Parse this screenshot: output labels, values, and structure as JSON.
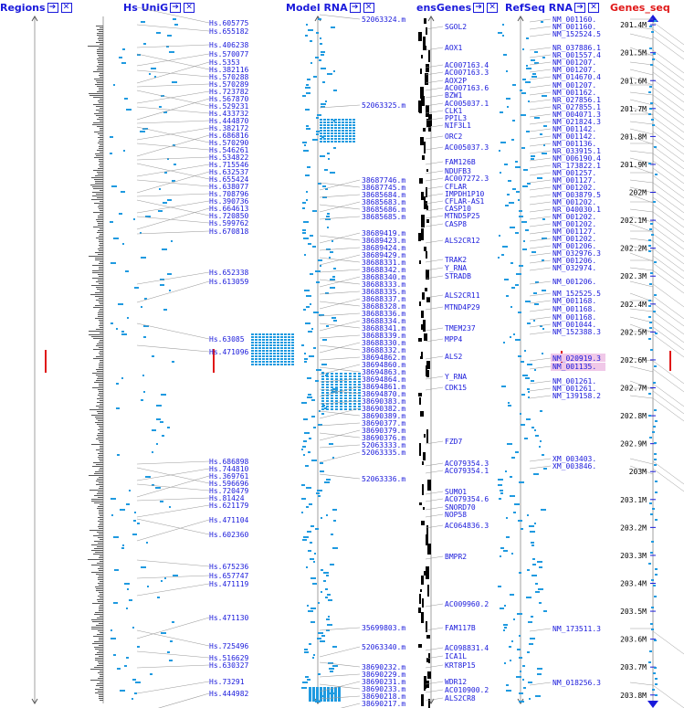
{
  "columns": [
    {
      "id": "regions",
      "title": "Regions",
      "active": false
    },
    {
      "id": "unigene",
      "title": "Hs UniG",
      "active": false
    },
    {
      "id": "modelrna",
      "title": "Model RNA",
      "active": false
    },
    {
      "id": "ensgenes",
      "title": "ensGenes",
      "active": false
    },
    {
      "id": "refseq",
      "title": "RefSeq RNA",
      "active": false
    },
    {
      "id": "genesseq",
      "title": "Genes_seq",
      "active": true
    }
  ],
  "button_glyphs": {
    "go": "➔",
    "close": "✕"
  },
  "colors": {
    "link": "#1a1adb",
    "active": "#e01818",
    "feature": "#1f9ae0",
    "gene": "#000000",
    "connector": "#9a9a9a",
    "highlight": "#f0c8e8"
  },
  "unigene_labels": [
    "Hs.605775",
    "Hs.655182",
    "Hs.406238",
    "Hs.570077",
    "Hs.5353",
    "Hs.382116",
    "Hs.570288",
    "Hs.570289",
    "Hs.723782",
    "Hs.567870",
    "Hs.529231",
    "Hs.433732",
    "Hs.444870",
    "Hs.382172",
    "Hs.686816",
    "Hs.570290",
    "Hs.546261",
    "Hs.534822",
    "Hs.715546",
    "Hs.632537",
    "Hs.655424",
    "Hs.638077",
    "Hs.708796",
    "Hs.390736",
    "Hs.664613",
    "Hs.720850",
    "Hs.599762",
    "Hs.670818",
    "Hs.652338",
    "Hs.613059",
    "Hs.63085",
    "Hs.471096",
    "Hs.686898",
    "Hs.744810",
    "Hs.369761",
    "Hs.596696",
    "Hs.720479",
    "Hs.81424",
    "Hs.621179",
    "Hs.471104",
    "Hs.602360",
    "Hs.675236",
    "Hs.657747",
    "Hs.471119",
    "Hs.471130",
    "Hs.725496",
    "Hs.516629",
    "Hs.630327",
    "Hs.73291",
    "Hs.444982"
  ],
  "modelrna_labels": [
    "52063324.m",
    "52063325.m",
    "38687746.m",
    "38687745.m",
    "38685684.m",
    "38685683.m",
    "38685686.m",
    "38685685.m",
    "38689419.m",
    "38689423.m",
    "38689424.m",
    "38689429.m",
    "38688331.m",
    "38688342.m",
    "38688340.m",
    "38688333.m",
    "38688335.m",
    "38688337.m",
    "38688328.m",
    "38688336.m",
    "38688334.m",
    "38688341.m",
    "38688339.m",
    "38688330.m",
    "38688332.m",
    "38694862.m",
    "38694860.m",
    "38694863.m",
    "38694864.m",
    "38694861.m",
    "38694870.m",
    "38690383.m",
    "38690382.m",
    "38690389.m",
    "38690377.m",
    "38690379.m",
    "38690376.m",
    "52063333.m",
    "52063335.m",
    "52063336.m",
    "35699803.m",
    "52063340.m",
    "38690232.m",
    "38690229.m",
    "38690231.m",
    "38690233.m",
    "38690218.m",
    "38690217.m"
  ],
  "ens_labels": [
    "SGOL2",
    "AOX1",
    "AC007163.4",
    "AC007163.3",
    "AOX2P",
    "AC007163.6",
    "BZW1",
    "AC005037.1",
    "CLK1",
    "PPIL3",
    "NIF3L1",
    "ORC2",
    "AC005037.3",
    "FAM126B",
    "NDUFB3",
    "AC007272.3",
    "CFLAR",
    "IMPDH1P10",
    "CFLAR-AS1",
    "CASP10",
    "MTND5P25",
    "CASP8",
    "ALS2CR12",
    "TRAK2",
    "Y_RNA",
    "STRADB",
    "ALS2CR11",
    "MTND4P29",
    "TMEM237",
    "MPP4",
    "ALS2",
    "Y_RNA",
    "CDK15",
    "FZD7",
    "AC079354.3",
    "AC079354.1",
    "SUMO1",
    "AC079354.6",
    "SNORD70",
    "NOP58",
    "AC064836.3",
    "BMPR2",
    "AC009960.2",
    "FAM117B",
    "AC098831.4",
    "ICA1L",
    "KRT8P15",
    "WDR12",
    "AC010900.2",
    "ALS2CR8"
  ],
  "refseq_labels": [
    "NM_001160.",
    "NM_001160.",
    "NM_152524.5",
    "NR_037886.1",
    "NR_001557.4",
    "NM_001207.",
    "NM_001207.",
    "NM_014670.4",
    "NM_001207.",
    "NM_001162.",
    "NR_027856.1",
    "NR_027855.1",
    "NM_004071.3",
    "NM_021824.3",
    "NM_001142.",
    "NM_001142.",
    "NM_001136.",
    "NR_033915.1",
    "NM_006190.4",
    "NR_173822.1",
    "NM_001257.",
    "NM_001127.",
    "NM_001202.",
    "NM_003879.5",
    "NM_001202.",
    "NR_040030.1",
    "NM_001202.",
    "NM_001202.",
    "NM_001127.",
    "NM_001202.",
    "NM_001206.",
    "NM_032976.3",
    "NM_001206.",
    "NM_032974.",
    "NM_001206.",
    "NM_152525.5",
    "NM_001168.",
    "NM_001168.",
    "NM_001168.",
    "NM_001044.",
    "NM_152388.3",
    "NM_020919.3",
    "NM_001135.",
    "NM_001261.",
    "NM_001261.",
    "NM_139158.2",
    "XM_003403.",
    "XM_003846.",
    "NM_173511.3",
    "NM_018256.3"
  ],
  "ruler_labels": [
    "201.4M",
    "201.5M",
    "201.6M",
    "201.7M",
    "201.8M",
    "201.9M",
    "202M",
    "202.1M",
    "202.2M",
    "202.3M",
    "202.4M",
    "202.5M",
    "202.6M",
    "202.7M",
    "202.8M",
    "202.9M",
    "203M",
    "203.1M",
    "203.2M",
    "203.3M",
    "203.4M",
    "203.5M",
    "203.6M",
    "203.7M",
    "203.8M"
  ],
  "ruler_values": [
    201.4,
    201.5,
    201.6,
    201.7,
    201.8,
    201.9,
    202.0,
    202.1,
    202.2,
    202.3,
    202.4,
    202.5,
    202.6,
    202.7,
    202.8,
    202.9,
    203.0,
    203.1,
    203.2,
    203.3,
    203.4,
    203.5,
    203.6,
    203.7,
    203.8
  ],
  "view_range_mb": [
    201.38,
    203.84
  ]
}
